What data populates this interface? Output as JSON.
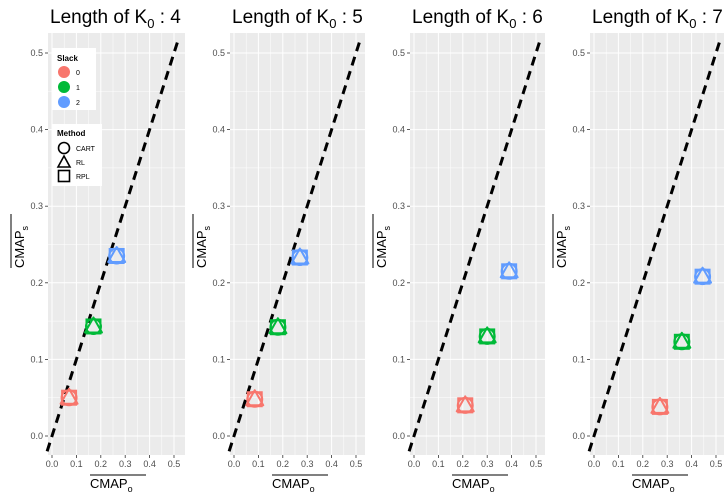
{
  "chart_data": [
    {
      "type": "scatter",
      "title": "Length of K₀ : 4",
      "title_main": "Length of K",
      "title_sub": "0",
      "title_tail": " : 4",
      "xlabel": "CMAP",
      "xlabel_sub": "o",
      "ylabel": "CMAP",
      "ylabel_sub": "s",
      "xlim": [
        0.0,
        0.5
      ],
      "ylim": [
        0.0,
        0.5
      ],
      "x_ticks": [
        "0.0",
        "0.1",
        "0.2",
        "0.3",
        "0.4",
        "0.5"
      ],
      "y_ticks": [
        "0.0",
        "0.1",
        "0.2",
        "0.3",
        "0.4",
        "0.5"
      ],
      "reference_line": "y = x",
      "points": [
        {
          "slack": "0",
          "x": 0.07,
          "y": 0.05
        },
        {
          "slack": "1",
          "x": 0.17,
          "y": 0.143
        },
        {
          "slack": "2",
          "x": 0.265,
          "y": 0.235
        }
      ]
    },
    {
      "type": "scatter",
      "title": "Length of K₀ : 5",
      "title_main": "Length of K",
      "title_sub": "0",
      "title_tail": " : 5",
      "xlabel": "CMAP",
      "xlabel_sub": "o",
      "ylabel": "CMAP",
      "ylabel_sub": "s",
      "xlim": [
        0.0,
        0.5
      ],
      "ylim": [
        0.0,
        0.5
      ],
      "x_ticks": [
        "0.0",
        "0.1",
        "0.2",
        "0.3",
        "0.4",
        "0.5"
      ],
      "y_ticks": [
        "0.0",
        "0.1",
        "0.2",
        "0.3",
        "0.4",
        "0.5"
      ],
      "reference_line": "y = x",
      "points": [
        {
          "slack": "0",
          "x": 0.085,
          "y": 0.048
        },
        {
          "slack": "1",
          "x": 0.18,
          "y": 0.142
        },
        {
          "slack": "2",
          "x": 0.27,
          "y": 0.233
        }
      ]
    },
    {
      "type": "scatter",
      "title": "Length of K₀ : 6",
      "title_main": "Length of K",
      "title_sub": "0",
      "title_tail": " : 6",
      "xlabel": "CMAP",
      "xlabel_sub": "o",
      "ylabel": "CMAP",
      "ylabel_sub": "s",
      "xlim": [
        0.0,
        0.5
      ],
      "ylim": [
        0.0,
        0.5
      ],
      "x_ticks": [
        "0.0",
        "0.1",
        "0.2",
        "0.3",
        "0.4",
        "0.5"
      ],
      "y_ticks": [
        "0.0",
        "0.1",
        "0.2",
        "0.3",
        "0.4",
        "0.5"
      ],
      "reference_line": "y = x",
      "points": [
        {
          "slack": "0",
          "x": 0.21,
          "y": 0.04
        },
        {
          "slack": "1",
          "x": 0.3,
          "y": 0.13
        },
        {
          "slack": "2",
          "x": 0.39,
          "y": 0.215
        }
      ]
    },
    {
      "type": "scatter",
      "title": "Length of K₀ : 7",
      "title_main": "Length of K",
      "title_sub": "0",
      "title_tail": " : 7",
      "xlabel": "CMAP",
      "xlabel_sub": "o",
      "ylabel": "CMAP",
      "ylabel_sub": "s",
      "xlim": [
        0.0,
        0.5
      ],
      "ylim": [
        0.0,
        0.5
      ],
      "x_ticks": [
        "0.0",
        "0.1",
        "0.2",
        "0.3",
        "0.4",
        "0.5"
      ],
      "y_ticks": [
        "0.0",
        "0.1",
        "0.2",
        "0.3",
        "0.4",
        "0.5"
      ],
      "reference_line": "y = x",
      "points": [
        {
          "slack": "0",
          "x": 0.27,
          "y": 0.038
        },
        {
          "slack": "1",
          "x": 0.36,
          "y": 0.123
        },
        {
          "slack": "2",
          "x": 0.445,
          "y": 0.208
        }
      ]
    }
  ],
  "legend": {
    "slack_title": "Slack",
    "slack_items": [
      {
        "label": "0",
        "color": "#F8766D"
      },
      {
        "label": "1",
        "color": "#00BA38"
      },
      {
        "label": "2",
        "color": "#619CFF"
      }
    ],
    "method_title": "Method",
    "method_items": [
      {
        "label": "CART",
        "shape": "circle"
      },
      {
        "label": "RL",
        "shape": "triangle"
      },
      {
        "label": "RPL",
        "shape": "square"
      }
    ]
  },
  "colors": {
    "panel_bg": "#EBEBEB",
    "grid": "#FFFFFF",
    "reference_line": "#000000"
  }
}
